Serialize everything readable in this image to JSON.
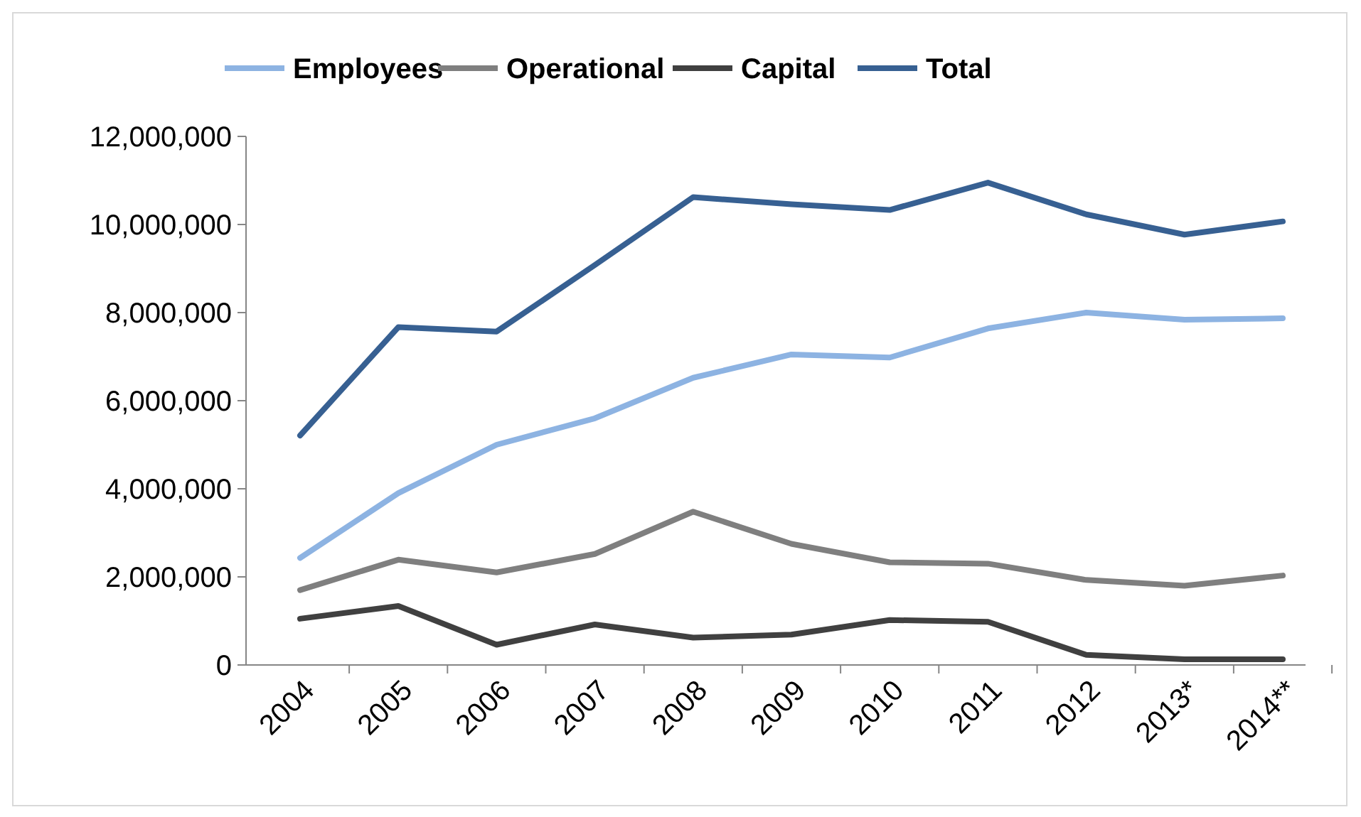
{
  "chart_data": {
    "type": "line",
    "categories": [
      "2004",
      "2005",
      "2006",
      "2007",
      "2008",
      "2009",
      "2010",
      "2011",
      "2012",
      "2013*",
      "2014**"
    ],
    "series": [
      {
        "name": "Employees",
        "color": "#8db3e2",
        "values": [
          2430000,
          3900000,
          5000000,
          5600000,
          6520000,
          7050000,
          6980000,
          7640000,
          8000000,
          7840000,
          7870000
        ]
      },
      {
        "name": "Operational",
        "color": "#7f7f7f",
        "values": [
          1700000,
          2390000,
          2100000,
          2520000,
          3480000,
          2750000,
          2330000,
          2300000,
          1930000,
          1800000,
          2030000
        ]
      },
      {
        "name": "Capital",
        "color": "#404040",
        "values": [
          1050000,
          1340000,
          460000,
          920000,
          620000,
          690000,
          1020000,
          980000,
          230000,
          130000,
          130000
        ]
      },
      {
        "name": "Total",
        "color": "#376092",
        "values": [
          5210000,
          7670000,
          7570000,
          9080000,
          10620000,
          10460000,
          10330000,
          10950000,
          10230000,
          9770000,
          10070000
        ]
      }
    ],
    "ylim": [
      0,
      12000000
    ],
    "yticks": [
      {
        "value": 0,
        "label": "0"
      },
      {
        "value": 2000000,
        "label": "2,000,000"
      },
      {
        "value": 4000000,
        "label": "4,000,000"
      },
      {
        "value": 6000000,
        "label": "6,000,000"
      },
      {
        "value": 8000000,
        "label": "8,000,000"
      },
      {
        "value": 10000000,
        "label": "10,000,000"
      },
      {
        "value": 12000000,
        "label": "12,000,000"
      }
    ],
    "grid": false,
    "legend": "top",
    "marker": "none",
    "line_style": "solid"
  }
}
